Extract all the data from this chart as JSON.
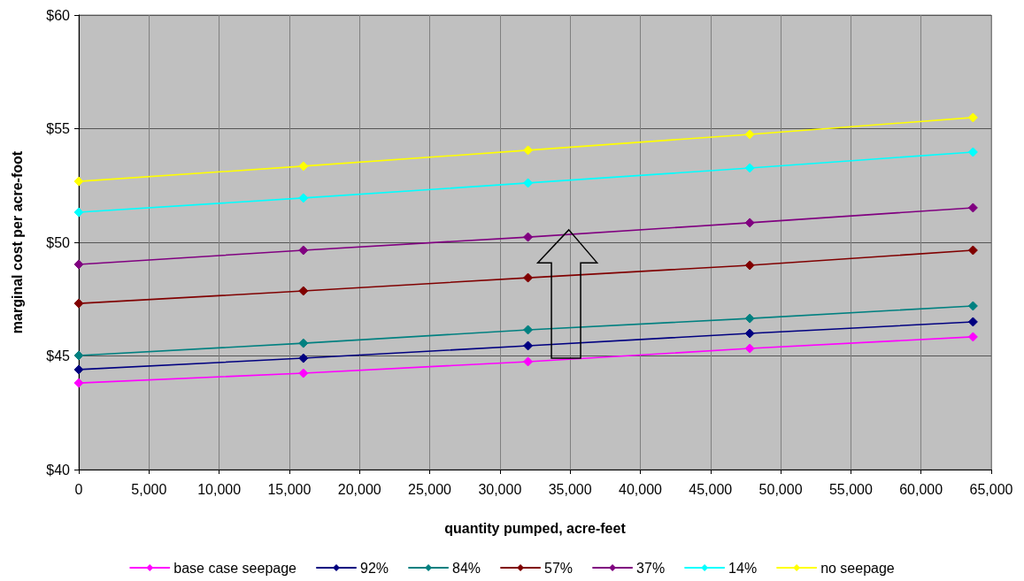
{
  "chart_data": {
    "type": "line",
    "xlabel": "quantity pumped, acre-feet",
    "ylabel": "marginal cost per acre-foot",
    "x": [
      0,
      16000,
      32000,
      47800,
      63700
    ],
    "series": [
      {
        "name": "base case seepage",
        "color": "#ff00ff",
        "values": [
          43.81,
          44.24,
          44.75,
          45.33,
          45.84
        ]
      },
      {
        "name": "92%",
        "color": "#000080",
        "values": [
          44.4,
          44.9,
          45.45,
          45.99,
          46.5
        ]
      },
      {
        "name": "84%",
        "color": "#008080",
        "values": [
          45.02,
          45.56,
          46.15,
          46.65,
          47.2
        ]
      },
      {
        "name": "57%",
        "color": "#800000",
        "values": [
          47.31,
          47.86,
          48.44,
          48.99,
          49.65
        ]
      },
      {
        "name": "37%",
        "color": "#800080",
        "values": [
          49.03,
          49.65,
          50.23,
          50.86,
          51.52
        ]
      },
      {
        "name": "14%",
        "color": "#00ffff",
        "values": [
          51.32,
          51.95,
          52.61,
          53.27,
          53.97
        ]
      },
      {
        "name": "no seepage",
        "color": "#ffff00",
        "values": [
          52.68,
          53.35,
          54.05,
          54.75,
          55.49
        ]
      }
    ],
    "xlim": [
      0,
      65000
    ],
    "xticks": [
      0,
      {
        "value": 5000,
        "label": "5,000"
      },
      {
        "value": 10000,
        "label": "10,000"
      },
      {
        "value": 15000,
        "label": "15,000"
      },
      {
        "value": 20000,
        "label": "20,000"
      },
      {
        "value": 25000,
        "label": "25,000"
      },
      {
        "value": 30000,
        "label": "30,000"
      },
      {
        "value": 35000,
        "label": "35,000"
      },
      {
        "value": 40000,
        "label": "40,000"
      },
      {
        "value": 45000,
        "label": "45,000"
      },
      {
        "value": 50000,
        "label": "50,000"
      },
      {
        "value": 55000,
        "label": "55,000"
      },
      {
        "value": 60000,
        "label": "60,000"
      },
      {
        "value": 65000,
        "label": "65,000"
      }
    ],
    "ylim": [
      40,
      60
    ],
    "yticks": [
      {
        "value": 40,
        "label": "$40"
      },
      {
        "value": 45,
        "label": "$45"
      },
      {
        "value": 50,
        "label": "$50"
      },
      {
        "value": 55,
        "label": "$55"
      },
      {
        "value": 60,
        "label": "$60"
      }
    ],
    "grid": true,
    "legend": "bottom",
    "marker": "diamond",
    "line_style": "solid"
  }
}
